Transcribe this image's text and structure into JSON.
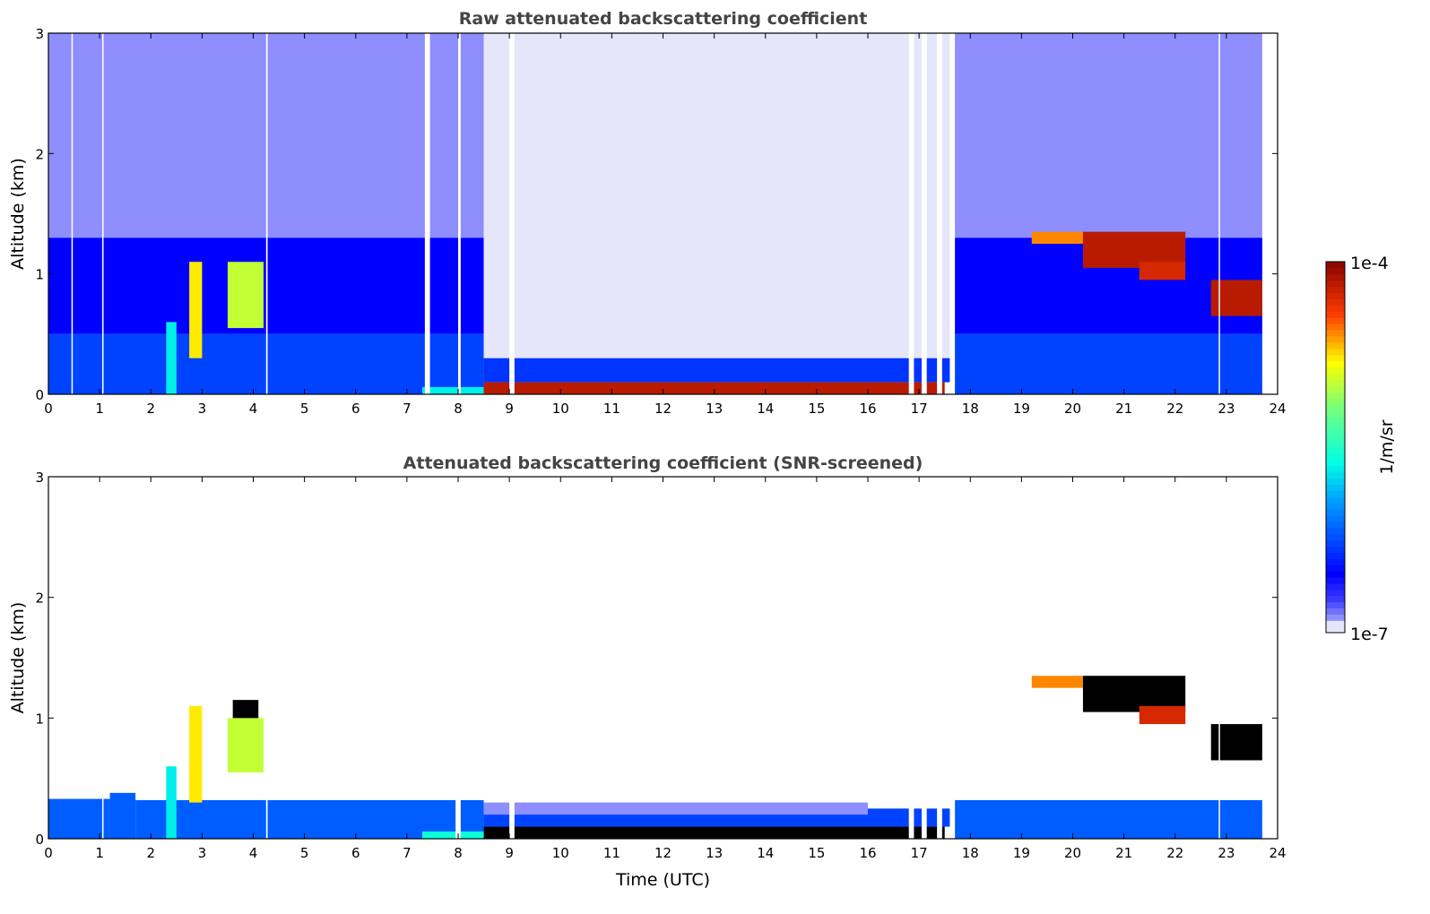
{
  "chart_data": [
    {
      "type": "heatmap",
      "title": "Raw attenuated backscattering coefficient",
      "xlabel": "",
      "ylabel": "Altitude (km)",
      "xlim": [
        0,
        24
      ],
      "ylim": [
        0,
        3
      ],
      "xticks": [
        0,
        1,
        2,
        3,
        4,
        5,
        6,
        7,
        8,
        9,
        10,
        11,
        12,
        13,
        14,
        15,
        16,
        17,
        18,
        19,
        20,
        21,
        22,
        23,
        24
      ],
      "yticks": [
        0,
        1,
        2,
        3
      ],
      "value_units": "log10 1/m/sr",
      "regions": [
        {
          "t": [
            0,
            8.5
          ],
          "z": [
            1.3,
            3
          ],
          "v": -6.9
        },
        {
          "t": [
            0,
            8.5
          ],
          "z": [
            0.5,
            1.3
          ],
          "v": -6.55
        },
        {
          "t": [
            0,
            8.5
          ],
          "z": [
            0,
            0.5
          ],
          "v": -6.3
        },
        {
          "t": [
            8.5,
            17.6
          ],
          "z": [
            0.3,
            3
          ],
          "v": -7.0
        },
        {
          "t": [
            8.5,
            17.6
          ],
          "z": [
            0.1,
            0.3
          ],
          "v": -6.35
        },
        {
          "t": [
            7.3,
            8.5
          ],
          "z": [
            0,
            0.06
          ],
          "v": -5.7
        },
        {
          "t": [
            8.5,
            17.5
          ],
          "z": [
            0,
            0.1
          ],
          "v": -4.2
        },
        {
          "t": [
            17.7,
            23.7
          ],
          "z": [
            1.3,
            3
          ],
          "v": -6.9
        },
        {
          "t": [
            17.7,
            23.7
          ],
          "z": [
            0.5,
            1.3
          ],
          "v": -6.55
        },
        {
          "t": [
            17.7,
            23.7
          ],
          "z": [
            0,
            0.5
          ],
          "v": -6.3
        },
        {
          "t": [
            2.3,
            2.5
          ],
          "z": [
            0,
            0.6
          ],
          "v": -5.7
        },
        {
          "t": [
            2.75,
            3.0
          ],
          "z": [
            0.3,
            1.1
          ],
          "v": -4.8
        },
        {
          "t": [
            3.5,
            4.2
          ],
          "z": [
            0.55,
            1.1
          ],
          "v": -5.0
        },
        {
          "t": [
            19.2,
            20.2
          ],
          "z": [
            1.25,
            1.35
          ],
          "v": -4.6
        },
        {
          "t": [
            20.2,
            22.2
          ],
          "z": [
            1.05,
            1.35
          ],
          "v": -4.2
        },
        {
          "t": [
            21.3,
            22.2
          ],
          "z": [
            0.95,
            1.1
          ],
          "v": -4.3
        },
        {
          "t": [
            22.7,
            23.7
          ],
          "z": [
            0.65,
            0.95
          ],
          "v": -4.2
        }
      ],
      "gaps": [
        [
          0.45,
          0.47
        ],
        [
          1.05,
          1.07
        ],
        [
          4.25,
          4.28
        ],
        [
          7.35,
          7.45
        ],
        [
          8.0,
          8.05
        ],
        [
          9.0,
          9.1
        ],
        [
          16.8,
          16.9
        ],
        [
          17.05,
          17.15
        ],
        [
          17.35,
          17.45
        ],
        [
          22.85,
          22.87
        ]
      ]
    },
    {
      "type": "heatmap",
      "title": "Attenuated backscattering coefficient (SNR-screened)",
      "xlabel": "Time (UTC)",
      "ylabel": "Altitude (km)",
      "xlim": [
        0,
        24
      ],
      "ylim": [
        0,
        3
      ],
      "xticks": [
        0,
        1,
        2,
        3,
        4,
        5,
        6,
        7,
        8,
        9,
        10,
        11,
        12,
        13,
        14,
        15,
        16,
        17,
        18,
        19,
        20,
        21,
        22,
        23,
        24
      ],
      "yticks": [
        0,
        1,
        2,
        3
      ],
      "value_units": "log10 1/m/sr",
      "regions": [
        {
          "t": [
            0,
            1.2
          ],
          "z": [
            0,
            0.33
          ],
          "v": -6.2
        },
        {
          "t": [
            1.2,
            1.7
          ],
          "z": [
            0,
            0.38
          ],
          "v": -6.2
        },
        {
          "t": [
            1.7,
            8.5
          ],
          "z": [
            0,
            0.32
          ],
          "v": -6.2
        },
        {
          "t": [
            8.5,
            16
          ],
          "z": [
            0.2,
            0.3
          ],
          "v": -6.9
        },
        {
          "t": [
            8.5,
            16
          ],
          "z": [
            0.1,
            0.2
          ],
          "v": -6.3
        },
        {
          "t": [
            16,
            17.6
          ],
          "z": [
            0.1,
            0.25
          ],
          "v": -6.3
        },
        {
          "t": [
            7.3,
            8.5
          ],
          "z": [
            0,
            0.06
          ],
          "v": -5.6
        },
        {
          "t": [
            8.5,
            17.5
          ],
          "z": [
            0,
            0.1
          ],
          "v": -3.0
        },
        {
          "t": [
            17.7,
            23.7
          ],
          "z": [
            0,
            0.32
          ],
          "v": -6.2
        },
        {
          "t": [
            2.3,
            2.5
          ],
          "z": [
            0,
            0.6
          ],
          "v": -5.7
        },
        {
          "t": [
            2.75,
            3.0
          ],
          "z": [
            0.3,
            1.1
          ],
          "v": -4.8
        },
        {
          "t": [
            3.5,
            4.2
          ],
          "z": [
            0.55,
            1.0
          ],
          "v": -5.0
        },
        {
          "t": [
            3.6,
            4.1
          ],
          "z": [
            1.0,
            1.15
          ],
          "v": -3.0
        },
        {
          "t": [
            19.2,
            20.2
          ],
          "z": [
            1.25,
            1.35
          ],
          "v": -4.6
        },
        {
          "t": [
            20.2,
            22.2
          ],
          "z": [
            1.05,
            1.35
          ],
          "v": -3.0
        },
        {
          "t": [
            21.3,
            22.2
          ],
          "z": [
            0.95,
            1.1
          ],
          "v": -4.3
        },
        {
          "t": [
            22.7,
            23.7
          ],
          "z": [
            0.65,
            0.95
          ],
          "v": -3.0
        }
      ],
      "gaps": [
        [
          1.05,
          1.07
        ],
        [
          4.25,
          4.28
        ],
        [
          7.95,
          8.05
        ],
        [
          9.0,
          9.1
        ],
        [
          16.8,
          16.9
        ],
        [
          17.05,
          17.15
        ],
        [
          17.35,
          17.45
        ],
        [
          22.85,
          22.87
        ]
      ]
    }
  ],
  "colorbar": {
    "label": "1/m/sr",
    "max_label": "1e-4",
    "min_label": "1e-7",
    "vmin_log10": -7,
    "vmax_log10": -4
  }
}
